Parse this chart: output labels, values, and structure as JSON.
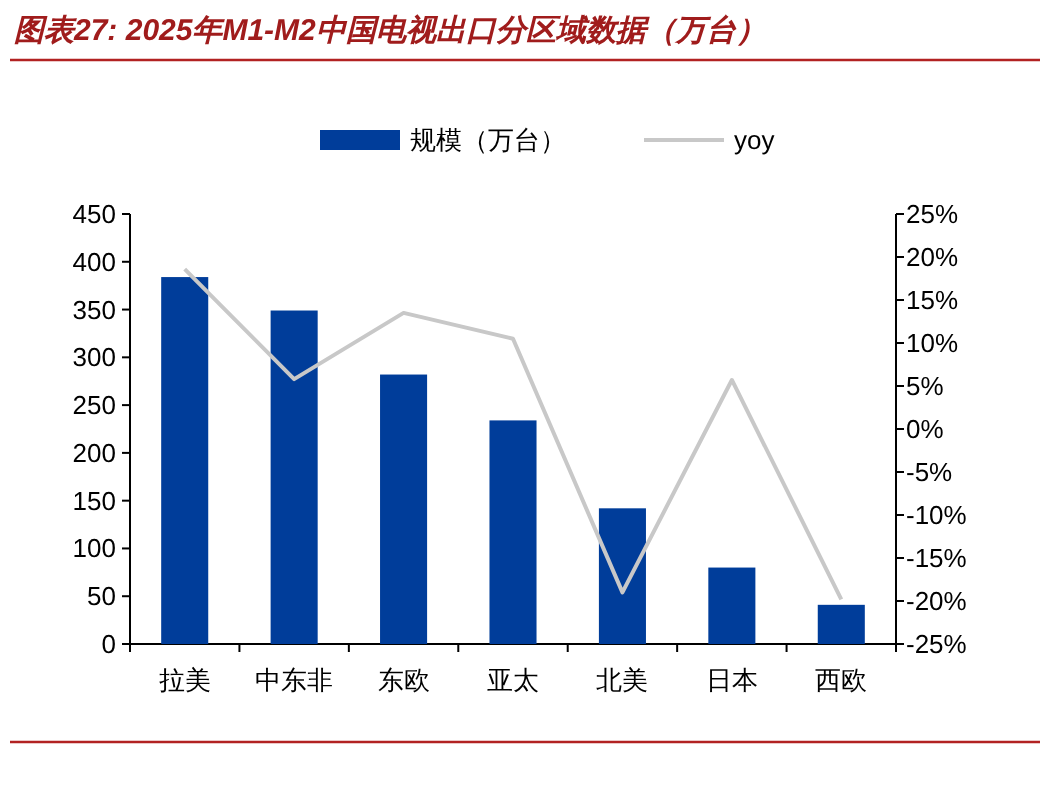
{
  "chart_data": {
    "type": "bar",
    "title": "图表27: 2025年M1-M2中国电视出口分区域数据（万台）",
    "categories": [
      "拉美",
      "中东非",
      "东欧",
      "亚太",
      "北美",
      "日本",
      "西欧"
    ],
    "series": [
      {
        "name": "规模（万台）",
        "color": "#003d9a",
        "values": [
          384,
          349,
          282,
          234,
          142,
          80,
          41
        ]
      },
      {
        "name": "yoy",
        "type": "line",
        "axis": "y2",
        "color": "#c8c8c8",
        "values": [
          18.6,
          5.8,
          13.5,
          10.5,
          -19.0,
          5.7,
          -19.8
        ]
      }
    ],
    "ylim": [
      0,
      450
    ],
    "yticks": [
      0,
      50,
      100,
      150,
      200,
      250,
      300,
      350,
      400,
      450
    ],
    "y2lim": [
      -25,
      25
    ],
    "y2ticks": [
      {
        "value": -25,
        "label": "-25%"
      },
      {
        "value": -20,
        "label": "-20%"
      },
      {
        "value": -15,
        "label": "-15%"
      },
      {
        "value": -10,
        "label": "-10%"
      },
      {
        "value": -5,
        "label": "-5%"
      },
      {
        "value": 0,
        "label": "0%"
      },
      {
        "value": 5,
        "label": "5%"
      },
      {
        "value": 10,
        "label": "10%"
      },
      {
        "value": 15,
        "label": "15%"
      },
      {
        "value": 20,
        "label": "20%"
      },
      {
        "value": 25,
        "label": "25%"
      }
    ],
    "legend": "top"
  }
}
